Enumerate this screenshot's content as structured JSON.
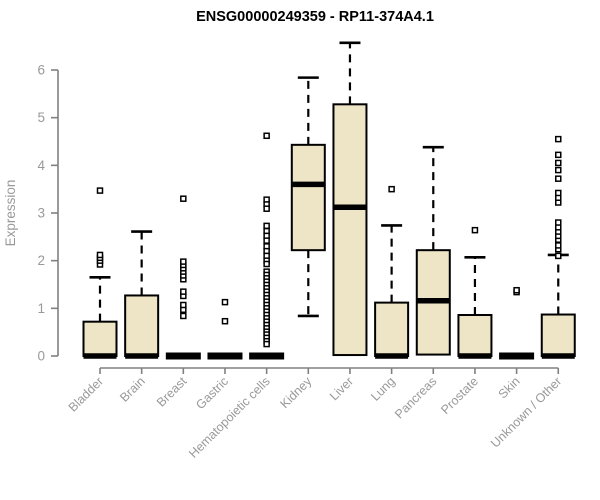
{
  "chart_data": {
    "type": "boxplot",
    "title": "ENSG00000249359 - RP11-374A4.1",
    "xlabel": "",
    "ylabel": "Expression",
    "ylim": [
      0,
      6.6
    ],
    "yticks": [
      0,
      1,
      2,
      3,
      4,
      5,
      6
    ],
    "grid": false,
    "legend": "none",
    "colors": {
      "box_fill": "#EDE5C6",
      "box_stroke": "#000000",
      "median": "#000000",
      "whisker": "#000000",
      "axis": "#808080",
      "tick_label": "#999999",
      "title": "#000000",
      "background": "#ffffff"
    },
    "categories": [
      "Bladder",
      "Brain",
      "Breast",
      "Gastric",
      "Hematopoietic cells",
      "Kidney",
      "Liver",
      "Lung",
      "Pancreas",
      "Prostate",
      "Skin",
      "Unknown / Other"
    ],
    "series": [
      {
        "category": "Bladder",
        "whisker_low": 0,
        "q1": 0,
        "median": 0,
        "q3": 0.72,
        "whisker_high": 1.65,
        "outliers": [
          1.92,
          2.0,
          2.06,
          2.12,
          3.47
        ]
      },
      {
        "category": "Brain",
        "whisker_low": 0,
        "q1": 0,
        "median": 0,
        "q3": 1.27,
        "whisker_high": 2.61,
        "outliers": []
      },
      {
        "category": "Breast",
        "whisker_low": 0,
        "q1": 0,
        "median": 0,
        "q3": 0,
        "whisker_high": 0,
        "outliers": [
          0.84,
          0.97,
          1.07,
          1.26,
          1.35,
          1.61,
          1.69,
          1.77,
          1.84,
          1.91,
          1.98,
          3.3
        ]
      },
      {
        "category": "Gastric",
        "whisker_low": 0,
        "q1": 0,
        "median": 0,
        "q3": 0,
        "whisker_high": 0,
        "outliers": [
          0.73,
          1.13
        ]
      },
      {
        "category": "Hematopoietic cells",
        "whisker_low": 0,
        "q1": 0,
        "median": 0,
        "q3": 0,
        "whisker_high": 0,
        "outliers": [
          4.62,
          3.28,
          3.18,
          3.09,
          2.73,
          2.62,
          2.52,
          2.42,
          2.3,
          2.2,
          2.1,
          2.0,
          1.93,
          1.77,
          1.7,
          1.63,
          1.56,
          1.49,
          1.42,
          1.35,
          1.28,
          1.21,
          1.14,
          1.07,
          1.0,
          0.93,
          0.86,
          0.79,
          0.72,
          0.65,
          0.58,
          0.51,
          0.45,
          0.38,
          0.31,
          0.25
        ]
      },
      {
        "category": "Kidney",
        "whisker_low": 0.84,
        "q1": 2.22,
        "median": 3.6,
        "q3": 4.43,
        "whisker_high": 5.84,
        "outliers": []
      },
      {
        "category": "Liver",
        "whisker_low": 0,
        "q1": 0.02,
        "median": 3.12,
        "q3": 5.28,
        "whisker_high": 6.57,
        "outliers": []
      },
      {
        "category": "Lung",
        "whisker_low": 0,
        "q1": 0,
        "median": 0,
        "q3": 1.12,
        "whisker_high": 2.74,
        "outliers": [
          3.5
        ]
      },
      {
        "category": "Pancreas",
        "whisker_low": 0,
        "q1": 0.03,
        "median": 1.16,
        "q3": 2.22,
        "whisker_high": 4.38,
        "outliers": []
      },
      {
        "category": "Prostate",
        "whisker_low": 0,
        "q1": 0,
        "median": 0,
        "q3": 0.86,
        "whisker_high": 2.07,
        "outliers": [
          2.64
        ]
      },
      {
        "category": "Skin",
        "whisker_low": 0,
        "q1": 0,
        "median": 0,
        "q3": 0,
        "whisker_high": 0,
        "outliers": [
          1.34,
          1.38
        ]
      },
      {
        "category": "Unknown / Other",
        "whisker_low": 0,
        "q1": 0,
        "median": 0,
        "q3": 0.87,
        "whisker_high": 2.12,
        "outliers": [
          2.1,
          2.24,
          2.32,
          2.44,
          2.52,
          2.61,
          2.7,
          2.8,
          3.22,
          3.32,
          3.42,
          3.72,
          3.9,
          4.05,
          4.22,
          4.55
        ]
      }
    ]
  }
}
